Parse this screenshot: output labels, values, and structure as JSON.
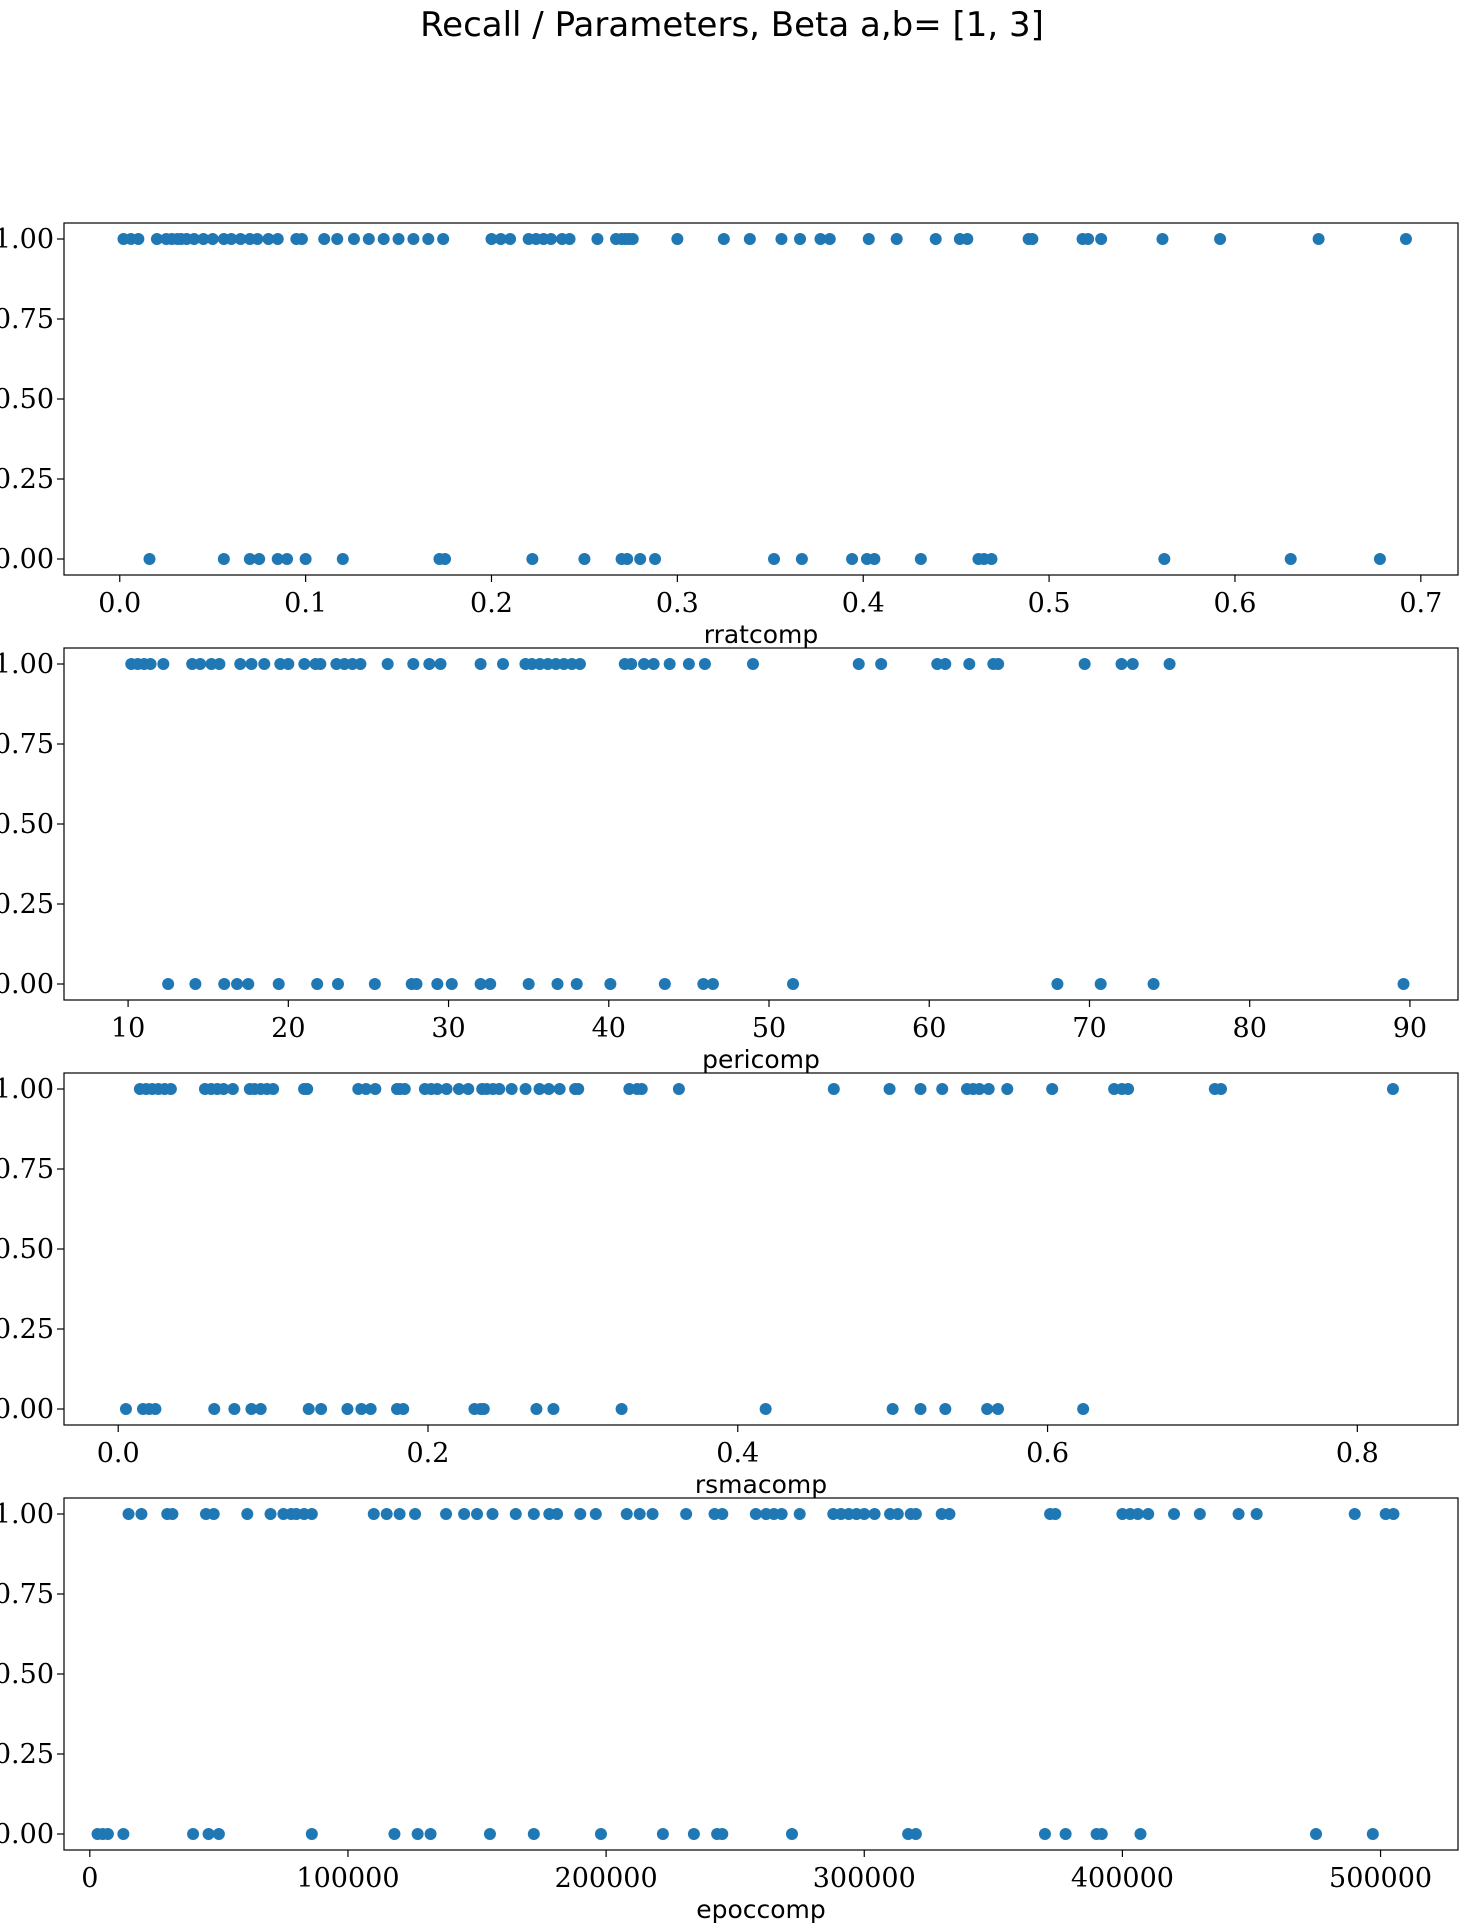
{
  "title": "Recall / Parameters, Beta a,b= [1, 3]",
  "colors": {
    "marker": "#1f77b4",
    "axes": "#000000",
    "background": "#ffffff"
  },
  "chart_data": [
    {
      "type": "scatter",
      "xlabel": "rratcomp",
      "ylabel": "",
      "xlim": [
        -0.03,
        0.72
      ],
      "ylim": [
        -0.05,
        1.05
      ],
      "xticks": [
        0,
        0.1,
        0.2,
        0.3,
        0.4,
        0.5,
        0.6,
        0.7
      ],
      "xtick_labels": [
        "0.0",
        "0.1",
        "0.2",
        "0.3",
        "0.4",
        "0.5",
        "0.6",
        "0.7"
      ],
      "yticks": [
        0,
        0.25,
        0.5,
        0.75,
        1.0
      ],
      "ytick_labels": [
        "0.00",
        "0.25",
        "0.50",
        "0.75",
        "1.00"
      ],
      "series": [
        {
          "x": [
            0.002,
            0.006,
            0.01,
            0.02,
            0.025,
            0.028,
            0.031,
            0.033,
            0.036,
            0.04,
            0.045,
            0.05,
            0.056,
            0.06,
            0.065,
            0.07,
            0.074,
            0.08,
            0.085,
            0.095,
            0.098,
            0.11,
            0.117,
            0.126,
            0.134,
            0.142,
            0.15,
            0.158,
            0.166,
            0.174,
            0.2,
            0.205,
            0.21,
            0.22,
            0.224,
            0.228,
            0.232,
            0.238,
            0.242,
            0.257,
            0.267,
            0.27,
            0.272,
            0.274,
            0.276,
            0.3,
            0.325,
            0.339,
            0.356,
            0.366,
            0.377,
            0.382,
            0.403,
            0.418,
            0.439,
            0.452,
            0.456,
            0.489,
            0.491,
            0.518,
            0.521,
            0.528,
            0.561,
            0.592,
            0.645,
            0.692
          ],
          "y": [
            1,
            1,
            1,
            1,
            1,
            1,
            1,
            1,
            1,
            1,
            1,
            1,
            1,
            1,
            1,
            1,
            1,
            1,
            1,
            1,
            1,
            1,
            1,
            1,
            1,
            1,
            1,
            1,
            1,
            1,
            1,
            1,
            1,
            1,
            1,
            1,
            1,
            1,
            1,
            1,
            1,
            1,
            1,
            1,
            1,
            1,
            1,
            1,
            1,
            1,
            1,
            1,
            1,
            1,
            1,
            1,
            1,
            1,
            1,
            1,
            1,
            1,
            1,
            1,
            1,
            1
          ]
        },
        {
          "x": [
            0.016,
            0.056,
            0.07,
            0.075,
            0.085,
            0.09,
            0.1,
            0.12,
            0.172,
            0.175,
            0.222,
            0.25,
            0.27,
            0.273,
            0.28,
            0.288,
            0.352,
            0.367,
            0.394,
            0.402,
            0.406,
            0.431,
            0.462,
            0.465,
            0.469,
            0.562,
            0.63,
            0.678
          ],
          "y": [
            0,
            0,
            0,
            0,
            0,
            0,
            0,
            0,
            0,
            0,
            0,
            0,
            0,
            0,
            0,
            0,
            0,
            0,
            0,
            0,
            0,
            0,
            0,
            0,
            0,
            0,
            0,
            0
          ]
        }
      ]
    },
    {
      "type": "scatter",
      "xlabel": "pericomp",
      "ylabel": "",
      "xlim": [
        6,
        93
      ],
      "ylim": [
        -0.05,
        1.05
      ],
      "xticks": [
        10,
        20,
        30,
        40,
        50,
        60,
        70,
        80,
        90
      ],
      "xtick_labels": [
        "10",
        "20",
        "30",
        "40",
        "50",
        "60",
        "70",
        "80",
        "90"
      ],
      "yticks": [
        0,
        0.25,
        0.5,
        0.75,
        1.0
      ],
      "ytick_labels": [
        "0.00",
        "0.25",
        "0.50",
        "0.75",
        "1.00"
      ],
      "series": [
        {
          "x": [
            10.2,
            10.6,
            11.0,
            11.4,
            12.2,
            14.0,
            14.5,
            15.2,
            15.7,
            17.0,
            17.7,
            18.5,
            19.5,
            20.0,
            21.0,
            21.7,
            22.0,
            23.0,
            23.5,
            24.0,
            24.5,
            26.2,
            27.8,
            28.8,
            29.5,
            32.0,
            33.4,
            34.8,
            35.2,
            35.7,
            36.2,
            36.7,
            37.2,
            37.7,
            38.2,
            41.0,
            41.4,
            42.2,
            42.8,
            43.8,
            45.0,
            46.0,
            49.0,
            55.6,
            57.0,
            60.5,
            61.0,
            62.5,
            64.0,
            64.3,
            69.7,
            72.0,
            72.7,
            75.0
          ],
          "y": [
            1,
            1,
            1,
            1,
            1,
            1,
            1,
            1,
            1,
            1,
            1,
            1,
            1,
            1,
            1,
            1,
            1,
            1,
            1,
            1,
            1,
            1,
            1,
            1,
            1,
            1,
            1,
            1,
            1,
            1,
            1,
            1,
            1,
            1,
            1,
            1,
            1,
            1,
            1,
            1,
            1,
            1,
            1,
            1,
            1,
            1,
            1,
            1,
            1,
            1,
            1,
            1,
            1,
            1
          ]
        },
        {
          "x": [
            12.5,
            14.2,
            16.0,
            16.8,
            17.5,
            19.4,
            21.8,
            23.1,
            25.4,
            27.7,
            28.0,
            29.3,
            30.2,
            32.0,
            32.6,
            35.0,
            36.8,
            38.0,
            40.1,
            43.5,
            45.9,
            46.5,
            51.5,
            68.0,
            70.7,
            74.0,
            89.6
          ],
          "y": [
            0,
            0,
            0,
            0,
            0,
            0,
            0,
            0,
            0,
            0,
            0,
            0,
            0,
            0,
            0,
            0,
            0,
            0,
            0,
            0,
            0,
            0,
            0,
            0,
            0,
            0,
            0
          ]
        }
      ]
    },
    {
      "type": "scatter",
      "xlabel": "rsmacomp",
      "ylabel": "",
      "xlim": [
        -0.035,
        0.865
      ],
      "ylim": [
        -0.05,
        1.05
      ],
      "xticks": [
        0,
        0.2,
        0.4,
        0.6,
        0.8
      ],
      "xtick_labels": [
        "0.0",
        "0.2",
        "0.4",
        "0.6",
        "0.8"
      ],
      "yticks": [
        0,
        0.25,
        0.5,
        0.75,
        1.0
      ],
      "ytick_labels": [
        "0.00",
        "0.25",
        "0.50",
        "0.75",
        "1.00"
      ],
      "series": [
        {
          "x": [
            0.014,
            0.018,
            0.022,
            0.026,
            0.03,
            0.034,
            0.056,
            0.06,
            0.064,
            0.068,
            0.074,
            0.085,
            0.088,
            0.092,
            0.096,
            0.1,
            0.12,
            0.122,
            0.155,
            0.16,
            0.166,
            0.18,
            0.182,
            0.185,
            0.198,
            0.202,
            0.206,
            0.212,
            0.22,
            0.226,
            0.235,
            0.238,
            0.242,
            0.246,
            0.254,
            0.263,
            0.272,
            0.278,
            0.285,
            0.295,
            0.297,
            0.33,
            0.335,
            0.338,
            0.362,
            0.462,
            0.498,
            0.518,
            0.532,
            0.548,
            0.552,
            0.556,
            0.562,
            0.574,
            0.603,
            0.643,
            0.648,
            0.652,
            0.708,
            0.712,
            0.823
          ],
          "y": [
            1,
            1,
            1,
            1,
            1,
            1,
            1,
            1,
            1,
            1,
            1,
            1,
            1,
            1,
            1,
            1,
            1,
            1,
            1,
            1,
            1,
            1,
            1,
            1,
            1,
            1,
            1,
            1,
            1,
            1,
            1,
            1,
            1,
            1,
            1,
            1,
            1,
            1,
            1,
            1,
            1,
            1,
            1,
            1,
            1,
            1,
            1,
            1,
            1,
            1,
            1,
            1,
            1,
            1,
            1,
            1,
            1,
            1,
            1,
            1,
            1
          ]
        },
        {
          "x": [
            0.005,
            0.016,
            0.02,
            0.024,
            0.062,
            0.075,
            0.086,
            0.092,
            0.123,
            0.131,
            0.148,
            0.157,
            0.163,
            0.18,
            0.184,
            0.23,
            0.234,
            0.236,
            0.27,
            0.281,
            0.325,
            0.418,
            0.5,
            0.518,
            0.534,
            0.561,
            0.568,
            0.623
          ],
          "y": [
            0,
            0,
            0,
            0,
            0,
            0,
            0,
            0,
            0,
            0,
            0,
            0,
            0,
            0,
            0,
            0,
            0,
            0,
            0,
            0,
            0,
            0,
            0,
            0,
            0,
            0,
            0,
            0
          ]
        }
      ]
    },
    {
      "type": "scatter",
      "xlabel": "epoccomp",
      "ylabel": "",
      "xlim": [
        -10000,
        530000
      ],
      "ylim": [
        -0.05,
        1.05
      ],
      "xticks": [
        0,
        100000,
        200000,
        300000,
        400000,
        500000
      ],
      "xtick_labels": [
        "0",
        "100000",
        "200000",
        "300000",
        "400000",
        "500000"
      ],
      "yticks": [
        0,
        0.25,
        0.5,
        0.75,
        1.0
      ],
      "ytick_labels": [
        "0.00",
        "0.25",
        "0.50",
        "0.75",
        "1.00"
      ],
      "series": [
        {
          "x": [
            15000,
            20000,
            30000,
            32000,
            45000,
            48000,
            61000,
            70000,
            75000,
            78000,
            80000,
            83000,
            86000,
            110000,
            115000,
            120000,
            126000,
            138000,
            145000,
            150000,
            156000,
            165000,
            172000,
            178000,
            181000,
            190000,
            196000,
            208000,
            213000,
            218000,
            231000,
            242000,
            245000,
            258000,
            262000,
            265000,
            268000,
            275000,
            288000,
            291000,
            294000,
            297000,
            300000,
            304000,
            310000,
            313000,
            318000,
            320000,
            330000,
            333000,
            372000,
            374000,
            400000,
            403000,
            406000,
            410000,
            420000,
            430000,
            445000,
            452000,
            490000,
            502000,
            505000
          ],
          "y": [
            1,
            1,
            1,
            1,
            1,
            1,
            1,
            1,
            1,
            1,
            1,
            1,
            1,
            1,
            1,
            1,
            1,
            1,
            1,
            1,
            1,
            1,
            1,
            1,
            1,
            1,
            1,
            1,
            1,
            1,
            1,
            1,
            1,
            1,
            1,
            1,
            1,
            1,
            1,
            1,
            1,
            1,
            1,
            1,
            1,
            1,
            1,
            1,
            1,
            1,
            1,
            1,
            1,
            1,
            1,
            1,
            1,
            1,
            1,
            1,
            1,
            1,
            1
          ]
        },
        {
          "x": [
            3000,
            5000,
            7000,
            13000,
            40000,
            46000,
            50000,
            86000,
            118000,
            127000,
            132000,
            155000,
            172000,
            198000,
            222000,
            234000,
            243000,
            245000,
            272000,
            317000,
            320000,
            370000,
            378000,
            390000,
            392000,
            407000,
            475000,
            497000
          ],
          "y": [
            0,
            0,
            0,
            0,
            0,
            0,
            0,
            0,
            0,
            0,
            0,
            0,
            0,
            0,
            0,
            0,
            0,
            0,
            0,
            0,
            0,
            0,
            0,
            0,
            0,
            0,
            0,
            0
          ]
        }
      ]
    }
  ]
}
